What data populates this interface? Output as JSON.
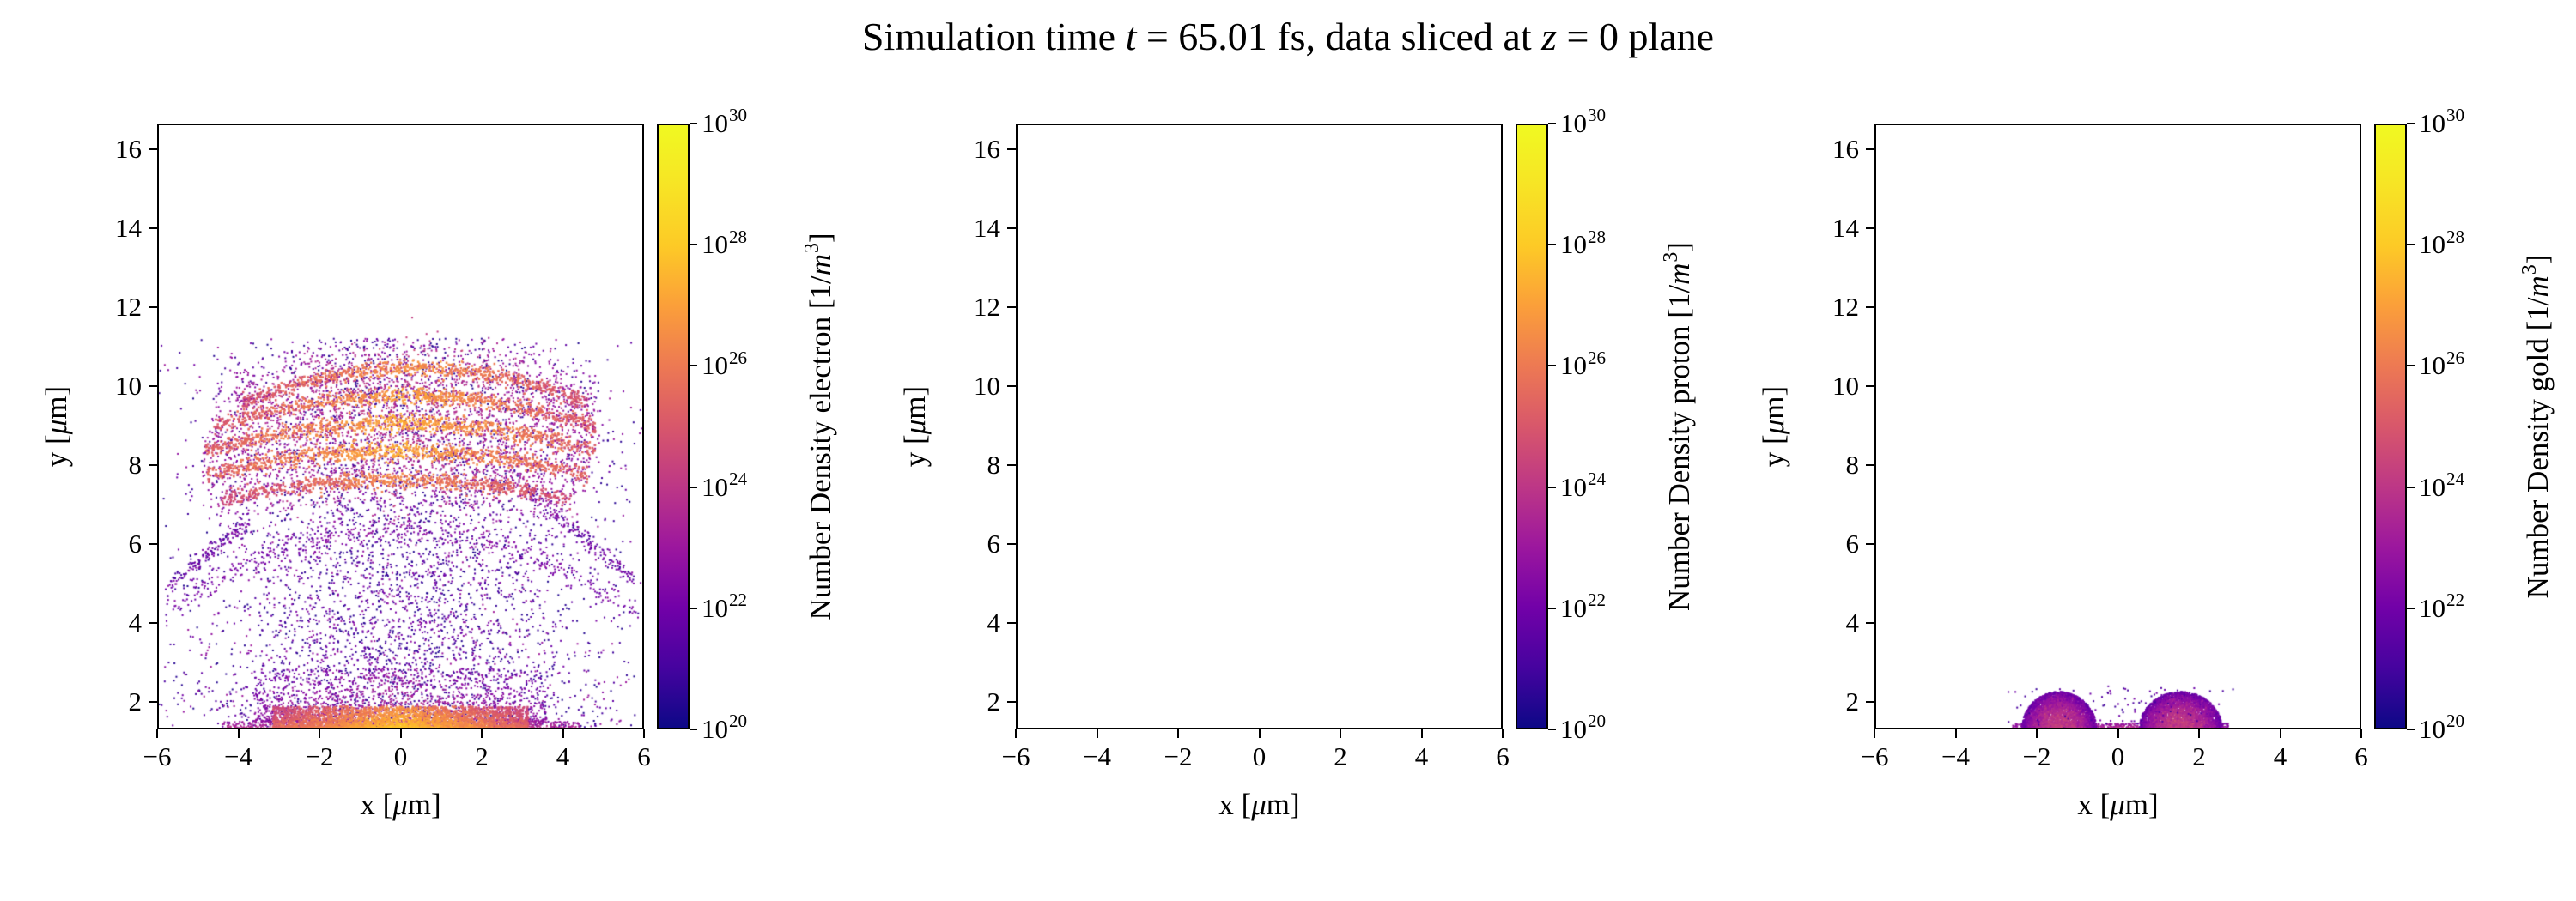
{
  "title_text": "Simulation time t = 65.01 fs, data sliced at z = 0 plane",
  "title_segments": [
    {
      "t": "Simulation time "
    },
    {
      "t": "t",
      "i": true
    },
    {
      "t": " = 65.01 fs, data sliced at "
    },
    {
      "t": "z",
      "i": true
    },
    {
      "t": " = 0 plane"
    }
  ],
  "colormap": {
    "name": "plasma",
    "anchors": [
      "#0d0887",
      "#46039f",
      "#7201a8",
      "#9c179e",
      "#bd3786",
      "#d8576b",
      "#ed7953",
      "#fb9f3a",
      "#fdca26",
      "#f7e425",
      "#f0f921"
    ]
  },
  "axes_style": {
    "spine_color": "#000000",
    "tick_color": "#000000",
    "background": "#ffffff",
    "grid": "off"
  },
  "chart_data": [
    {
      "type": "scatter",
      "species": "electron",
      "xlabel": "x [μm]",
      "ylabel": "y [μm]",
      "xlabel_segments": [
        {
          "t": "x ["
        },
        {
          "t": "μ",
          "i": true
        },
        {
          "t": "m]"
        }
      ],
      "ylabel_segments": [
        {
          "t": "y ["
        },
        {
          "t": "μ",
          "i": true
        },
        {
          "t": "m]"
        }
      ],
      "xlim": [
        -6,
        6
      ],
      "ylim": [
        1.3,
        16.65
      ],
      "xtick_values": [
        -6,
        -4,
        -2,
        0,
        2,
        4,
        6
      ],
      "xtick_labels": [
        "−6",
        "−4",
        "−2",
        "0",
        "2",
        "4",
        "6"
      ],
      "ytick_values": [
        2,
        4,
        6,
        8,
        10,
        12,
        14,
        16
      ],
      "ytick_labels": [
        "2",
        "4",
        "6",
        "8",
        "10",
        "12",
        "14",
        "16"
      ],
      "colorbar": {
        "scale": "log",
        "min_exp": 20,
        "max_exp": 30,
        "tick_exps": [
          30,
          28,
          26,
          24,
          22,
          20
        ],
        "label_text": "Number Density electron [1/m³]",
        "label_segments": [
          {
            "t": "Number Density electron [1/"
          },
          {
            "t": "m",
            "i": true
          },
          {
            "t": "3",
            "sup": true
          },
          {
            "t": "]"
          }
        ]
      },
      "structures": [
        {
          "kind": "diffuse",
          "n": 5200,
          "mu": 0,
          "sigma": 2.6,
          "clip": [
            -5.95,
            5.95
          ],
          "ymin": 1.35,
          "ymax": 11.2,
          "ypow": 1.25,
          "exp": [
            20.3,
            23.2
          ],
          "size": 2
        },
        {
          "kind": "arc",
          "n": 420,
          "x0": -5.8,
          "x1": 5.8,
          "y0": 6.35,
          "sag": 2.1,
          "thick": 0.18,
          "exp": [
            20.8,
            22.6
          ],
          "edge_fade": 0.6,
          "size": 2
        },
        {
          "kind": "streak",
          "n": 200,
          "x0": 3.1,
          "y0": 7.35,
          "x1": 5.75,
          "y1": 5.1,
          "thick": 0.12,
          "exp": [
            20.9,
            22.8
          ],
          "size": 2
        },
        {
          "kind": "streak",
          "n": 160,
          "x0": -5.75,
          "y0": 4.9,
          "x1": -3.7,
          "y1": 6.6,
          "thick": 0.12,
          "exp": [
            20.9,
            22.8
          ],
          "size": 2
        },
        {
          "kind": "arc",
          "n": 480,
          "x0": -4.2,
          "x1": 4.8,
          "y0": 10.5,
          "sag": 0.95,
          "thick": 0.4,
          "exp": [
            21.8,
            24.0
          ],
          "edge_fade": 1.2,
          "size": 2
        },
        {
          "kind": "arc",
          "n": 680,
          "x0": -3.9,
          "x1": 4.6,
          "y0": 10.45,
          "sag": 0.9,
          "thick": 0.1,
          "exp": [
            24.3,
            26.6
          ],
          "edge_fade": 1.8,
          "size": 2.5
        },
        {
          "kind": "arc",
          "n": 500,
          "x0": -4.7,
          "x1": 4.9,
          "y0": 9.8,
          "sag": 0.85,
          "thick": 0.42,
          "exp": [
            21.8,
            24.0
          ],
          "edge_fade": 1.2,
          "size": 2
        },
        {
          "kind": "arc",
          "n": 760,
          "x0": -4.6,
          "x1": 4.8,
          "y0": 9.75,
          "sag": 0.8,
          "thick": 0.1,
          "exp": [
            24.6,
            27.0
          ],
          "edge_fade": 2.0,
          "size": 2.5
        },
        {
          "kind": "arc",
          "n": 520,
          "x0": -4.9,
          "x1": 4.9,
          "y0": 9.1,
          "sag": 0.75,
          "thick": 0.45,
          "exp": [
            21.8,
            24.0
          ],
          "edge_fade": 1.2,
          "size": 2
        },
        {
          "kind": "arc",
          "n": 800,
          "x0": -4.8,
          "x1": 4.8,
          "y0": 9.05,
          "sag": 0.7,
          "thick": 0.11,
          "exp": [
            24.8,
            27.2
          ],
          "edge_fade": 2.0,
          "size": 2.5
        },
        {
          "kind": "arc",
          "n": 520,
          "x0": -4.9,
          "x1": 4.7,
          "y0": 8.4,
          "sag": 0.65,
          "thick": 0.45,
          "exp": [
            21.8,
            24.0
          ],
          "edge_fade": 1.2,
          "size": 2
        },
        {
          "kind": "arc",
          "n": 800,
          "x0": -4.8,
          "x1": 4.6,
          "y0": 8.35,
          "sag": 0.6,
          "thick": 0.11,
          "exp": [
            24.8,
            27.2
          ],
          "edge_fade": 2.0,
          "size": 2.5
        },
        {
          "kind": "arc",
          "n": 460,
          "x0": -4.5,
          "x1": 4.3,
          "y0": 7.68,
          "sag": 0.55,
          "thick": 0.4,
          "exp": [
            21.8,
            23.8
          ],
          "edge_fade": 1.2,
          "size": 2
        },
        {
          "kind": "arc",
          "n": 640,
          "x0": -4.4,
          "x1": 4.2,
          "y0": 7.62,
          "sag": 0.5,
          "thick": 0.1,
          "exp": [
            24.2,
            26.4
          ],
          "edge_fade": 1.8,
          "size": 2.5
        },
        {
          "kind": "band",
          "n": 800,
          "x0": -4.4,
          "x1": 4.4,
          "ybase": 1.32,
          "yspread": 0.18,
          "ypow": 1.5,
          "exp": [
            23.0,
            25.2
          ],
          "xfade": 1.5,
          "size": 2
        },
        {
          "kind": "band",
          "n": 1300,
          "x0": -3.6,
          "x1": 3.6,
          "ybase": 1.5,
          "yspread": 1.35,
          "ypow": 2.2,
          "exp": [
            21.5,
            24.0
          ],
          "xfade": 1.2,
          "size": 2
        },
        {
          "kind": "band",
          "n": 2400,
          "x0": -3.15,
          "x1": 3.15,
          "ybase": 1.33,
          "yspread": 0.55,
          "ypow": 1.8,
          "exp": [
            25.3,
            27.9
          ],
          "xfade": 2.5,
          "size": 2.5
        }
      ]
    },
    {
      "type": "scatter",
      "species": "proton",
      "xlabel": "x [μm]",
      "ylabel": "y [μm]",
      "xlabel_segments": [
        {
          "t": "x ["
        },
        {
          "t": "μ",
          "i": true
        },
        {
          "t": "m]"
        }
      ],
      "ylabel_segments": [
        {
          "t": "y ["
        },
        {
          "t": "μ",
          "i": true
        },
        {
          "t": "m]"
        }
      ],
      "xlim": [
        -6,
        6
      ],
      "ylim": [
        1.3,
        16.65
      ],
      "xtick_values": [
        -6,
        -4,
        -2,
        0,
        2,
        4,
        6
      ],
      "xtick_labels": [
        "−6",
        "−4",
        "−2",
        "0",
        "2",
        "4",
        "6"
      ],
      "ytick_values": [
        2,
        4,
        6,
        8,
        10,
        12,
        14,
        16
      ],
      "ytick_labels": [
        "2",
        "4",
        "6",
        "8",
        "10",
        "12",
        "14",
        "16"
      ],
      "colorbar": {
        "scale": "log",
        "min_exp": 20,
        "max_exp": 30,
        "tick_exps": [
          30,
          28,
          26,
          24,
          22,
          20
        ],
        "label_text": "Number Density proton [1/m³]",
        "label_segments": [
          {
            "t": "Number Density proton [1/"
          },
          {
            "t": "m",
            "i": true
          },
          {
            "t": "3",
            "sup": true
          },
          {
            "t": "]"
          }
        ]
      },
      "structures": []
    },
    {
      "type": "scatter",
      "species": "gold",
      "xlabel": "x [μm]",
      "ylabel": "y [μm]",
      "xlabel_segments": [
        {
          "t": "x ["
        },
        {
          "t": "μ",
          "i": true
        },
        {
          "t": "m]"
        }
      ],
      "ylabel_segments": [
        {
          "t": "y ["
        },
        {
          "t": "μ",
          "i": true
        },
        {
          "t": "m]"
        }
      ],
      "xlim": [
        -6,
        6
      ],
      "ylim": [
        1.3,
        16.65
      ],
      "xtick_values": [
        -6,
        -4,
        -2,
        0,
        2,
        4,
        6
      ],
      "xtick_labels": [
        "−6",
        "−4",
        "−2",
        "0",
        "2",
        "4",
        "6"
      ],
      "ytick_values": [
        2,
        4,
        6,
        8,
        10,
        12,
        14,
        16
      ],
      "ytick_labels": [
        "2",
        "4",
        "6",
        "8",
        "10",
        "12",
        "14",
        "16"
      ],
      "colorbar": {
        "scale": "log",
        "min_exp": 20,
        "max_exp": 30,
        "tick_exps": [
          30,
          28,
          26,
          24,
          22,
          20
        ],
        "label_text": "Number Density gold [1/m³]",
        "label_segments": [
          {
            "t": "Number Density gold [1/"
          },
          {
            "t": "m",
            "i": true
          },
          {
            "t": "3",
            "sup": true
          },
          {
            "t": "]"
          }
        ]
      },
      "structures": [
        {
          "kind": "band",
          "n": 750,
          "x0": -2.6,
          "x1": 2.72,
          "ybase": 1.3,
          "yspread": 0.15,
          "ypow": 1.0,
          "exp": [
            22.0,
            24.0
          ],
          "xfade": 0.6,
          "size": 2
        },
        {
          "kind": "dome",
          "n": 2800,
          "cx": -1.45,
          "rx": 0.92,
          "ry": 0.95,
          "ybase": 1.3,
          "exp": [
            21.3,
            24.2
          ],
          "size": 2.2
        },
        {
          "kind": "dome",
          "n": 3000,
          "cx": 1.55,
          "rx": 1.02,
          "ry": 0.95,
          "ybase": 1.3,
          "exp": [
            21.3,
            24.2
          ],
          "size": 2.2
        },
        {
          "kind": "diffuse",
          "n": 110,
          "mu": 0.1,
          "sigma": 1.7,
          "clip": [
            -2.75,
            2.85
          ],
          "ymin": 1.32,
          "ymax": 2.4,
          "ypow": 1.0,
          "exp": [
            20.8,
            22.2
          ],
          "size": 2
        }
      ]
    }
  ]
}
